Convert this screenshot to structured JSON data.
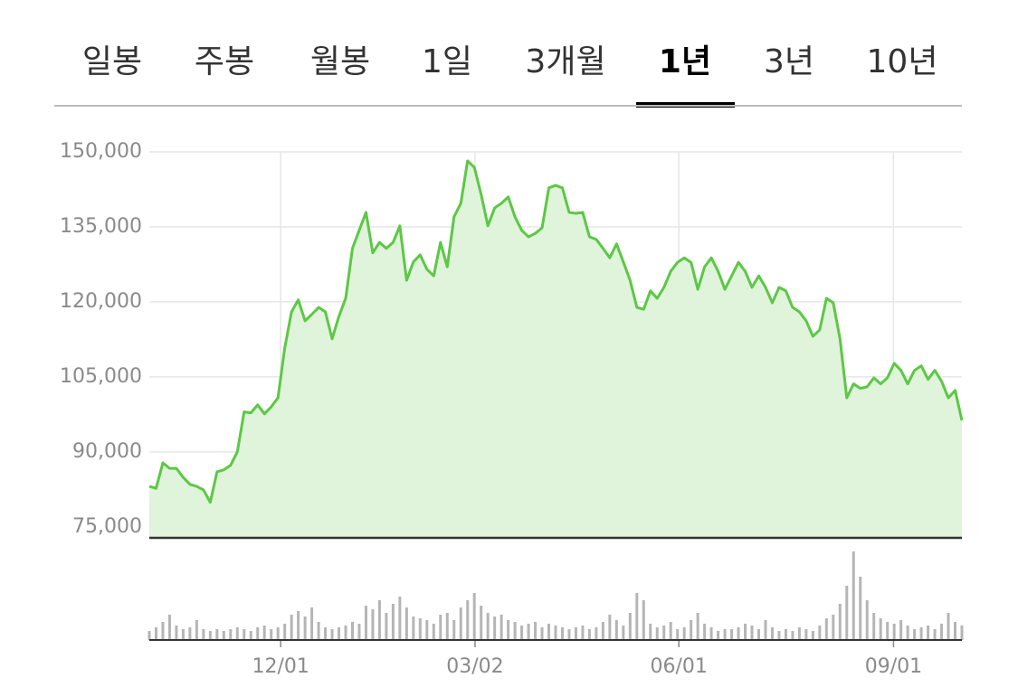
{
  "tabs": [
    {
      "label": "일봉",
      "selected": false
    },
    {
      "label": "주봉",
      "selected": false
    },
    {
      "label": "월봉",
      "selected": false
    },
    {
      "label": "1일",
      "selected": false
    },
    {
      "label": "3개월",
      "selected": false
    },
    {
      "label": "1년",
      "selected": true
    },
    {
      "label": "3년",
      "selected": false
    },
    {
      "label": "10년",
      "selected": false
    }
  ],
  "chart_data": [
    {
      "type": "area",
      "color": "#5cc845",
      "fill": "#dff4da",
      "grid": true,
      "x": [
        0,
        1,
        2,
        3,
        4,
        5,
        6,
        7,
        8,
        9,
        10,
        11,
        12,
        13,
        14,
        15,
        16,
        17,
        18,
        19,
        20,
        21,
        22,
        23,
        24,
        25,
        26,
        27,
        28,
        29,
        30,
        31,
        32,
        33,
        34,
        35,
        36,
        37,
        38,
        39,
        40,
        41,
        42,
        43,
        44,
        45,
        46,
        47,
        48,
        49,
        50,
        51,
        52,
        53,
        54,
        55,
        56,
        57,
        58,
        59,
        60,
        61,
        62,
        63,
        64,
        65,
        66,
        67,
        68,
        69,
        70,
        71,
        72,
        73,
        74,
        75,
        76,
        77,
        78,
        79,
        80,
        81,
        82,
        83,
        84,
        85,
        86,
        87,
        88,
        89,
        90,
        91,
        92,
        93,
        94,
        95,
        96,
        97,
        98,
        99,
        100,
        101,
        102,
        103,
        104,
        105,
        106,
        107,
        108,
        109,
        110,
        111,
        112,
        113,
        114,
        115,
        116,
        117,
        118,
        119,
        120
      ],
      "values": [
        83100,
        82700,
        87800,
        86700,
        86700,
        84900,
        83500,
        83100,
        82400,
        79900,
        86000,
        86400,
        87300,
        90000,
        98000,
        97800,
        99400,
        97600,
        99000,
        100800,
        110800,
        118000,
        120400,
        116200,
        117500,
        118900,
        118000,
        112600,
        117100,
        120700,
        130700,
        134300,
        137900,
        129800,
        131900,
        130700,
        131900,
        135200,
        124300,
        128000,
        129400,
        126500,
        125200,
        131900,
        127000,
        137000,
        139700,
        148200,
        146900,
        141500,
        135200,
        138800,
        139700,
        141000,
        137000,
        134300,
        133000,
        133700,
        134800,
        142800,
        143300,
        142800,
        137900,
        137700,
        137900,
        133000,
        132500,
        130700,
        128800,
        131600,
        128000,
        124300,
        118900,
        118500,
        122200,
        120700,
        122900,
        126100,
        127900,
        128800,
        127900,
        122500,
        127000,
        128800,
        126100,
        122500,
        125200,
        127900,
        126100,
        122900,
        125200,
        122900,
        119800,
        122900,
        122200,
        118900,
        118000,
        116200,
        113100,
        114400,
        120700,
        119800,
        112600,
        100800,
        103600,
        102700,
        103000,
        104800,
        103600,
        104800,
        107700,
        106300,
        103600,
        106300,
        107200,
        104500,
        106300,
        104100,
        100800,
        102300,
        96300
      ],
      "xlim": [
        0,
        120
      ],
      "ylim": [
        72800,
        150000
      ],
      "yticks": [
        {
          "value": 75000,
          "label": "75,000"
        },
        {
          "value": 90000,
          "label": "90,000"
        },
        {
          "value": 105000,
          "label": "105,000"
        },
        {
          "value": 120000,
          "label": "120,000"
        },
        {
          "value": 135000,
          "label": "135,000"
        },
        {
          "value": 150000,
          "label": "150,000"
        }
      ],
      "xticks": [
        {
          "value": 19.4,
          "label": "12/01"
        },
        {
          "value": 48.1,
          "label": "03/02"
        },
        {
          "value": 78.2,
          "label": "06/01"
        },
        {
          "value": 109.9,
          "label": "09/01"
        }
      ]
    },
    {
      "type": "bar",
      "color": "#b5b5b5",
      "values": [
        10,
        14,
        20,
        28,
        16,
        12,
        14,
        22,
        12,
        10,
        12,
        10,
        12,
        14,
        12,
        10,
        14,
        16,
        12,
        14,
        18,
        28,
        32,
        26,
        36,
        20,
        14,
        12,
        14,
        16,
        20,
        18,
        38,
        34,
        44,
        30,
        40,
        48,
        36,
        26,
        24,
        22,
        18,
        28,
        30,
        22,
        36,
        44,
        52,
        38,
        30,
        26,
        28,
        22,
        20,
        16,
        18,
        20,
        14,
        18,
        16,
        14,
        12,
        14,
        16,
        12,
        14,
        20,
        28,
        22,
        16,
        30,
        52,
        44,
        18,
        14,
        16,
        20,
        12,
        14,
        22,
        30,
        18,
        14,
        10,
        12,
        12,
        14,
        18,
        16,
        12,
        22,
        14,
        10,
        12,
        10,
        14,
        12,
        10,
        16,
        24,
        28,
        40,
        60,
        98,
        70,
        44,
        30,
        24,
        20,
        18,
        22,
        16,
        12,
        14,
        16,
        12,
        18,
        30,
        20,
        16
      ],
      "ylim": [
        0,
        100
      ]
    }
  ]
}
